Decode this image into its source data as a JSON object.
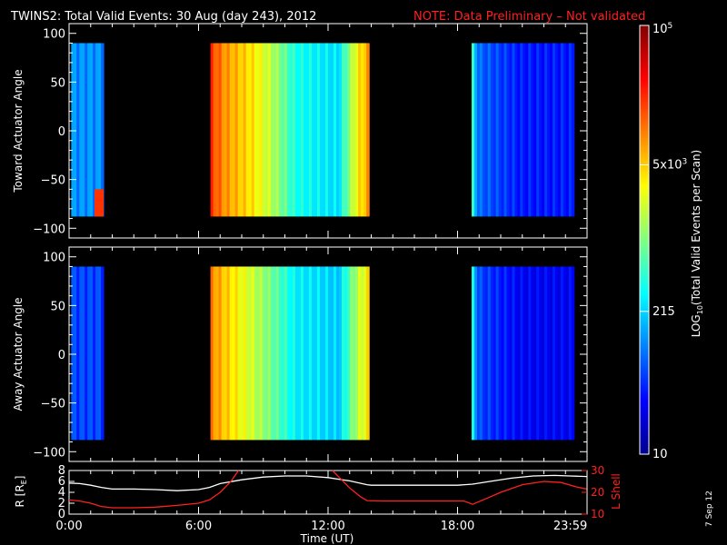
{
  "title": {
    "main": "TWINS2: Total Valid Events: 30 Aug (day 243), 2012",
    "note": "NOTE: Data Preliminary – Not validated"
  },
  "colors": {
    "background": "#000000",
    "axes": "#ffffff",
    "note": "#ff2020",
    "r_trace": "#ffffff",
    "lshell_trace": "#ff2020"
  },
  "colorbar": {
    "label": "LOG10(Total Valid Events per Scan)",
    "label_base": "LOG",
    "label_sub": "10",
    "label_rest": "(Total Valid Events per Scan)",
    "scale": "log",
    "range": [
      10,
      100000
    ],
    "ticks": [
      {
        "value": 100000,
        "base": "10",
        "exp": "5"
      },
      {
        "value": 5000,
        "base": "5x10",
        "exp": "3"
      },
      {
        "value": 215,
        "text": "215"
      },
      {
        "value": 10,
        "text": "10"
      }
    ],
    "colormap": [
      "#00008f",
      "#0000ff",
      "#0080ff",
      "#00ffff",
      "#80ff80",
      "#ffff00",
      "#ff8000",
      "#ff0000",
      "#800000"
    ]
  },
  "x_axis": {
    "label": "Time (UT)",
    "range_hours": [
      0,
      24
    ],
    "ticks": [
      {
        "value": 0,
        "label": "0:00"
      },
      {
        "value": 6,
        "label": "6:00"
      },
      {
        "value": 12,
        "label": "12:00"
      },
      {
        "value": 18,
        "label": "18:00"
      },
      {
        "value": 23.983,
        "label": "23:59"
      }
    ]
  },
  "footer": {
    "date_stamp": "7 Sep 12"
  },
  "chart_data": [
    {
      "type": "heatmap",
      "panel": "toward",
      "ylabel": "Toward Actuator Angle",
      "ylim": [
        -110,
        110
      ],
      "yticks": [
        100,
        50,
        0,
        -50,
        -100
      ],
      "angle_range": [
        -88,
        90
      ],
      "z_scale": "log",
      "z_range": [
        10,
        100000
      ],
      "segments": [
        {
          "start_hour": 0.1,
          "end_hour": 1.6,
          "level": 120,
          "note": "blue, rising toward low angles",
          "edge_level": 20000
        },
        {
          "start_hour": 6.55,
          "end_hour": 13.9,
          "level_profile": [
            {
              "hour": 6.55,
              "level": 20000
            },
            {
              "hour": 7.3,
              "level": 8000
            },
            {
              "hour": 8.5,
              "level": 4000
            },
            {
              "hour": 9.5,
              "level": 1500
            },
            {
              "hour": 10.5,
              "level": 400
            },
            {
              "hour": 11.5,
              "level": 300
            },
            {
              "hour": 12.5,
              "level": 250
            },
            {
              "hour": 13.3,
              "level": 3000
            },
            {
              "hour": 13.9,
              "level": 8000
            }
          ]
        },
        {
          "start_hour": 18.65,
          "end_hour": 23.4,
          "level_profile": [
            {
              "hour": 18.65,
              "level": 500
            },
            {
              "hour": 19.0,
              "level": 80
            },
            {
              "hour": 21.0,
              "level": 40
            },
            {
              "hour": 23.4,
              "level": 40
            }
          ]
        }
      ]
    },
    {
      "type": "heatmap",
      "panel": "away",
      "ylabel": "Away Actuator Angle",
      "ylim": [
        -110,
        110
      ],
      "yticks": [
        100,
        50,
        0,
        -50,
        -100
      ],
      "angle_range": [
        -88,
        90
      ],
      "z_scale": "log",
      "z_range": [
        10,
        100000
      ],
      "segments": [
        {
          "start_hour": 0.1,
          "end_hour": 1.6,
          "level": 60,
          "note": "blue, brighter near top"
        },
        {
          "start_hour": 6.55,
          "end_hour": 13.9,
          "level_profile": [
            {
              "hour": 6.55,
              "level": 10000
            },
            {
              "hour": 7.3,
              "level": 5000
            },
            {
              "hour": 8.5,
              "level": 2000
            },
            {
              "hour": 9.5,
              "level": 800
            },
            {
              "hour": 10.5,
              "level": 300
            },
            {
              "hour": 11.5,
              "level": 250
            },
            {
              "hour": 12.5,
              "level": 200
            },
            {
              "hour": 13.3,
              "level": 1500
            },
            {
              "hour": 13.9,
              "level": 4000
            }
          ]
        },
        {
          "start_hour": 18.65,
          "end_hour": 23.4,
          "level_profile": [
            {
              "hour": 18.65,
              "level": 400
            },
            {
              "hour": 19.0,
              "level": 60
            },
            {
              "hour": 21.0,
              "level": 30
            },
            {
              "hour": 23.4,
              "level": 30
            }
          ]
        }
      ]
    },
    {
      "type": "line",
      "panel": "orbit",
      "ylabel_left": "R [RE]",
      "ylabel_left_base": "R [R",
      "ylabel_left_sub": "E",
      "ylabel_left_end": "]",
      "ylim_left": [
        0,
        8
      ],
      "yticks_left": [
        0,
        2,
        4,
        6,
        8
      ],
      "ylabel_right": "L Shell",
      "ylim_right": [
        10,
        30
      ],
      "yticks_right": [
        10,
        20,
        30
      ],
      "series": [
        {
          "axis": "left",
          "x": [
            0,
            0.5,
            1,
            1.5,
            2,
            3,
            4,
            5,
            6,
            6.5,
            7,
            8,
            9,
            10,
            11,
            12,
            13,
            13.8,
            14,
            15,
            16,
            17,
            18,
            18.7,
            19.5,
            20.5,
            21.5,
            22.5,
            23.2,
            23.983
          ],
          "y": [
            5.7,
            5.6,
            5.3,
            4.9,
            4.6,
            4.6,
            4.5,
            4.3,
            4.5,
            4.9,
            5.6,
            6.3,
            6.8,
            7.0,
            7.0,
            6.7,
            6.1,
            5.4,
            5.3,
            5.3,
            5.3,
            5.3,
            5.3,
            5.5,
            6.0,
            6.6,
            7.0,
            7.1,
            7.0,
            6.9
          ]
        },
        {
          "axis": "right",
          "x": [
            0,
            0.5,
            1,
            1.5,
            2,
            3,
            4,
            5,
            6,
            6.5,
            7,
            7.5,
            7.85
          ],
          "y": [
            16.5,
            16.0,
            15.0,
            13.5,
            12.9,
            12.9,
            13.2,
            14.0,
            15.0,
            16.5,
            20.0,
            25.0,
            30.0
          ]
        },
        {
          "axis": "right",
          "x": [
            12.2,
            12.6,
            13.0,
            13.5,
            13.8,
            14.5,
            15.5,
            16.5,
            17.5,
            18.3,
            18.7,
            19.3,
            20.0,
            21.0,
            22.0,
            22.8,
            23.5,
            23.983
          ],
          "y": [
            30.0,
            26.0,
            22.0,
            18.0,
            16.2,
            16.0,
            16.0,
            16.0,
            16.0,
            16.0,
            14.5,
            17.0,
            20.0,
            23.5,
            25.0,
            24.5,
            22.5,
            21.5
          ]
        }
      ]
    }
  ]
}
